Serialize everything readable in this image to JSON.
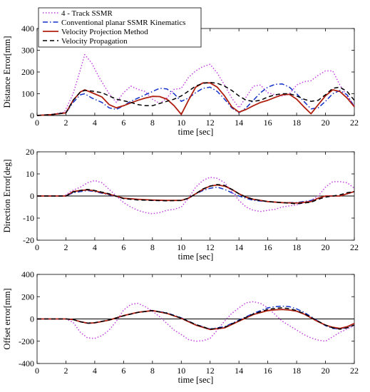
{
  "chart_data": [
    {
      "type": "line",
      "xlabel": "time [sec]",
      "ylabel": "Distance Error[mm]",
      "xlim": [
        0,
        22
      ],
      "ylim": [
        0,
        400
      ],
      "xticks": [
        0,
        2,
        4,
        6,
        8,
        10,
        12,
        14,
        16,
        18,
        20,
        22
      ],
      "yticks": [
        0,
        100,
        200,
        300,
        400
      ],
      "zero_line": true,
      "legend": {
        "placement": "top-left",
        "entries": [
          "4 - Track SSMR",
          "Conventional planar SSMR Kinematics",
          "Velocity Projection Method",
          "Velocity Propagation"
        ]
      },
      "series": [
        {
          "name": "4 - Track SSMR",
          "x": [
            0,
            1,
            1.9,
            2.5,
            3.0,
            3.3,
            3.8,
            4.3,
            5.0,
            5.5,
            6.0,
            6.5,
            7.0,
            7.5,
            8.0,
            8.5,
            9.0,
            9.5,
            10.0,
            10.5,
            11.0,
            11.5,
            12.0,
            12.5,
            13.0,
            13.5,
            14.0,
            14.5,
            15.0,
            15.5,
            16.0,
            16.5,
            17.0,
            17.5,
            18.0,
            18.5,
            19.0,
            19.5,
            20.0,
            20.5,
            21.0,
            21.5,
            22.0
          ],
          "y": [
            0,
            5,
            15,
            100,
            210,
            280,
            240,
            175,
            100,
            60,
            105,
            135,
            120,
            110,
            75,
            55,
            80,
            120,
            125,
            175,
            205,
            225,
            235,
            195,
            140,
            80,
            35,
            85,
            135,
            140,
            105,
            95,
            90,
            100,
            140,
            155,
            160,
            185,
            205,
            205,
            140,
            90,
            45
          ]
        },
        {
          "name": "Conventional planar SSMR Kinematics",
          "x": [
            0,
            1,
            2.0,
            2.5,
            3.0,
            3.3,
            3.8,
            4.5,
            5.0,
            5.5,
            6.0,
            6.5,
            7.0,
            7.5,
            8.0,
            8.5,
            9.0,
            9.5,
            10.0,
            10.5,
            11.0,
            11.5,
            12.0,
            12.5,
            13.0,
            13.5,
            14.0,
            14.5,
            15.0,
            15.5,
            16.0,
            16.5,
            17.0,
            17.5,
            18.0,
            18.5,
            19.0,
            19.5,
            20.0,
            20.5,
            21.0,
            21.5,
            22.0
          ],
          "y": [
            0,
            4,
            12,
            60,
            95,
            100,
            80,
            60,
            35,
            28,
            45,
            65,
            80,
            95,
            110,
            125,
            122,
            100,
            65,
            80,
            105,
            125,
            130,
            110,
            75,
            35,
            12,
            35,
            70,
            105,
            130,
            143,
            145,
            130,
            100,
            65,
            30,
            35,
            65,
            100,
            115,
            95,
            40
          ]
        },
        {
          "name": "Velocity Projection Method",
          "x": [
            0,
            1,
            2.0,
            2.5,
            3.0,
            3.3,
            3.8,
            4.5,
            5.0,
            5.5,
            6.0,
            6.5,
            7.0,
            7.5,
            8.0,
            8.5,
            9.0,
            9.5,
            10.0,
            10.5,
            11.0,
            11.5,
            12.0,
            12.5,
            13.0,
            13.5,
            14.0,
            14.5,
            15.0,
            15.5,
            16.0,
            16.5,
            17.0,
            17.5,
            18.0,
            18.5,
            19.0,
            19.5,
            20.0,
            20.5,
            21.0,
            21.5,
            22.0
          ],
          "y": [
            0,
            4,
            12,
            70,
            108,
            118,
            105,
            85,
            50,
            35,
            45,
            58,
            70,
            80,
            88,
            87,
            75,
            45,
            5,
            70,
            130,
            150,
            150,
            130,
            90,
            40,
            15,
            28,
            45,
            60,
            70,
            83,
            95,
            97,
            75,
            40,
            8,
            50,
            90,
            118,
            110,
            80,
            40
          ]
        },
        {
          "name": "Velocity Propagation",
          "x": [
            0,
            1,
            2.0,
            2.5,
            3.0,
            3.3,
            3.8,
            4.5,
            5.0,
            5.5,
            6.0,
            6.5,
            7.0,
            7.5,
            8.0,
            8.5,
            9.0,
            9.5,
            10.0,
            10.5,
            11.0,
            11.5,
            12.0,
            12.5,
            13.0,
            13.5,
            14.0,
            14.5,
            15.0,
            15.5,
            16.0,
            16.5,
            17.0,
            17.5,
            18.0,
            18.5,
            19.0,
            19.5,
            20.0,
            20.5,
            21.0,
            21.5,
            22.0
          ],
          "y": [
            0,
            4,
            12,
            70,
            108,
            115,
            112,
            105,
            90,
            75,
            68,
            60,
            50,
            45,
            45,
            55,
            65,
            75,
            90,
            112,
            135,
            148,
            152,
            148,
            135,
            115,
            90,
            70,
            65,
            70,
            85,
            95,
            100,
            100,
            90,
            75,
            65,
            70,
            95,
            125,
            130,
            110,
            70
          ]
        }
      ]
    },
    {
      "type": "line",
      "xlabel": "time [sec]",
      "ylabel": "Direction Error[deg]",
      "xlim": [
        0,
        22
      ],
      "ylim": [
        -20,
        20
      ],
      "xticks": [
        0,
        2,
        4,
        6,
        8,
        10,
        12,
        14,
        16,
        18,
        20,
        22
      ],
      "yticks": [
        -20,
        -10,
        0,
        10,
        20
      ],
      "zero_line": true,
      "series": [
        {
          "name": "4 - Track SSMR",
          "x": [
            0,
            1,
            1.9,
            2.3,
            3.0,
            3.5,
            4.0,
            4.5,
            5.0,
            5.5,
            6.0,
            6.5,
            7.0,
            7.5,
            8.0,
            8.5,
            9.0,
            9.5,
            10.0,
            10.5,
            11.0,
            11.5,
            12.0,
            12.5,
            13.0,
            13.5,
            14.0,
            14.5,
            15.0,
            15.5,
            16.0,
            16.5,
            17.0,
            17.5,
            18.0,
            18.5,
            19.0,
            19.5,
            20.0,
            20.5,
            21.0,
            21.5,
            22.0
          ],
          "y": [
            0,
            0,
            0,
            2,
            4,
            6,
            7,
            6,
            3,
            0,
            -3,
            -5,
            -6.5,
            -7.5,
            -8,
            -7.5,
            -6.5,
            -6,
            -5,
            -1,
            4,
            7,
            8.5,
            8,
            6,
            2,
            -2,
            -5,
            -6.5,
            -7,
            -6.5,
            -6,
            -5,
            -4.5,
            -4,
            -3,
            -2,
            0,
            4,
            6.5,
            6.5,
            6,
            3.5
          ]
        },
        {
          "name": "Conventional planar SSMR Kinematics",
          "x": [
            0,
            1,
            2.0,
            2.5,
            3.0,
            3.5,
            4.0,
            5.0,
            6.0,
            7.0,
            8.0,
            9.0,
            10.0,
            10.5,
            11.0,
            11.5,
            12.0,
            12.5,
            13.0,
            13.5,
            14.0,
            14.5,
            15.0,
            16.0,
            17.0,
            18.0,
            19.0,
            19.5,
            20.0,
            20.5,
            21.0,
            21.5,
            22.0
          ],
          "y": [
            0,
            0,
            0,
            1.5,
            2,
            2.5,
            2,
            0.5,
            -1,
            -1.5,
            -2,
            -2,
            -2,
            -1,
            1,
            2.5,
            3.5,
            4,
            3,
            1.5,
            0,
            -1,
            -2,
            -2.5,
            -3,
            -3,
            -2,
            -1,
            0,
            0,
            0,
            1,
            2
          ]
        },
        {
          "name": "Velocity Projection Method",
          "x": [
            0,
            1,
            2.0,
            2.5,
            3.0,
            3.5,
            4.0,
            5.0,
            6.0,
            7.0,
            8.0,
            9.0,
            10.0,
            10.5,
            11.0,
            11.5,
            12.0,
            12.5,
            13.0,
            13.5,
            14.0,
            14.5,
            15.0,
            16.0,
            17.0,
            18.0,
            19.0,
            19.5,
            20.0,
            20.5,
            21.0,
            21.5,
            22.0
          ],
          "y": [
            0,
            0,
            0,
            2,
            2.5,
            2.8,
            2.3,
            0.8,
            -1,
            -1.5,
            -1.8,
            -2,
            -2,
            -1,
            1,
            3,
            4.5,
            5,
            4.5,
            3,
            1,
            -0.5,
            -1.5,
            -2.5,
            -3,
            -3.2,
            -2.5,
            -1,
            0,
            0,
            0,
            1,
            2
          ]
        },
        {
          "name": "Velocity Propagation",
          "x": [
            0,
            1,
            2.0,
            2.5,
            3.0,
            3.5,
            4.0,
            5.0,
            6.0,
            7.0,
            8.0,
            9.0,
            10.0,
            10.5,
            11.0,
            11.5,
            12.0,
            12.5,
            13.0,
            13.5,
            14.0,
            14.5,
            15.0,
            16.0,
            17.0,
            18.0,
            19.0,
            19.5,
            20.0,
            20.5,
            21.0,
            21.5,
            22.0
          ],
          "y": [
            0,
            0,
            0,
            1.8,
            2.5,
            3,
            2.5,
            1,
            -1.2,
            -1.8,
            -2,
            -2.2,
            -2,
            -1,
            1,
            3.2,
            4.5,
            5.2,
            4.8,
            3,
            1,
            -0.5,
            -1.5,
            -2.5,
            -3,
            -3.5,
            -2.8,
            -1.5,
            -0.5,
            0,
            0.5,
            1.5,
            2
          ]
        }
      ]
    },
    {
      "type": "line",
      "xlabel": "time [sec]",
      "ylabel": "Offset error[mm]",
      "xlim": [
        0,
        22
      ],
      "ylim": [
        -400,
        400
      ],
      "xticks": [
        0,
        2,
        4,
        6,
        8,
        10,
        12,
        14,
        16,
        18,
        20,
        22
      ],
      "yticks": [
        -400,
        -200,
        0,
        200,
        400
      ],
      "zero_line": true,
      "series": [
        {
          "name": "4 - Track SSMR",
          "x": [
            0,
            1,
            2.0,
            2.5,
            3.0,
            3.5,
            4.0,
            4.5,
            5.0,
            5.5,
            6.0,
            6.5,
            7.0,
            7.5,
            8.0,
            8.5,
            9.0,
            9.5,
            10.0,
            10.5,
            11.0,
            11.5,
            12.0,
            12.5,
            13.0,
            13.5,
            14.0,
            14.5,
            15.0,
            15.5,
            16.0,
            16.5,
            17.0,
            17.5,
            18.0,
            18.5,
            19.0,
            19.5,
            20.0,
            20.5,
            21.0,
            21.5,
            22.0
          ],
          "y": [
            0,
            0,
            0,
            -30,
            -120,
            -170,
            -175,
            -150,
            -100,
            -20,
            80,
            130,
            140,
            110,
            70,
            20,
            -40,
            -100,
            -140,
            -185,
            -200,
            -195,
            -175,
            -100,
            -20,
            50,
            100,
            145,
            155,
            140,
            100,
            40,
            -20,
            -60,
            -100,
            -140,
            -170,
            -190,
            -200,
            -160,
            -120,
            -90,
            -60
          ]
        },
        {
          "name": "Conventional planar SSMR Kinematics",
          "x": [
            0,
            1,
            2.0,
            2.5,
            3.0,
            3.5,
            4.0,
            5.0,
            6.0,
            7.0,
            8.0,
            9.0,
            10.0,
            11.0,
            12.0,
            13.0,
            14.0,
            15.0,
            16.0,
            16.5,
            17.0,
            17.5,
            18.0,
            18.5,
            19.0,
            19.5,
            20.0,
            20.5,
            21.0,
            21.5,
            22.0
          ],
          "y": [
            0,
            0,
            0,
            -5,
            -25,
            -40,
            -35,
            -10,
            30,
            60,
            75,
            55,
            10,
            -50,
            -90,
            -70,
            -10,
            50,
            100,
            110,
            115,
            110,
            90,
            60,
            20,
            -20,
            -60,
            -85,
            -90,
            -75,
            -55
          ]
        },
        {
          "name": "Velocity Projection Method",
          "x": [
            0,
            1,
            2.0,
            2.5,
            3.0,
            3.5,
            4.0,
            5.0,
            6.0,
            7.0,
            8.0,
            9.0,
            10.0,
            11.0,
            12.0,
            13.0,
            14.0,
            15.0,
            16.0,
            16.5,
            17.0,
            17.5,
            18.0,
            18.5,
            19.0,
            19.5,
            20.0,
            20.5,
            21.0,
            21.5,
            22.0
          ],
          "y": [
            0,
            0,
            0,
            -5,
            -25,
            -38,
            -35,
            -10,
            30,
            60,
            75,
            50,
            5,
            -55,
            -95,
            -80,
            -20,
            40,
            75,
            82,
            85,
            80,
            70,
            45,
            10,
            -25,
            -55,
            -75,
            -85,
            -70,
            -40
          ]
        },
        {
          "name": "Velocity Propagation",
          "x": [
            0,
            1,
            2.0,
            2.5,
            3.0,
            3.5,
            4.0,
            5.0,
            6.0,
            7.0,
            8.0,
            9.0,
            10.0,
            11.0,
            12.0,
            13.0,
            14.0,
            15.0,
            16.0,
            16.5,
            17.0,
            17.5,
            18.0,
            18.5,
            19.0,
            19.5,
            20.0,
            20.5,
            21.0,
            21.5,
            22.0
          ],
          "y": [
            0,
            0,
            0,
            -5,
            -25,
            -38,
            -33,
            -8,
            28,
            58,
            75,
            52,
            8,
            -50,
            -92,
            -75,
            -15,
            45,
            85,
            95,
            100,
            92,
            75,
            50,
            15,
            -20,
            -55,
            -80,
            -92,
            -80,
            -55
          ]
        }
      ]
    }
  ],
  "style": {
    "series_colors": [
      "#c040e0",
      "#1030c8",
      "#b02010",
      "#000000"
    ],
    "series_dash": [
      "1.5,2.5",
      "7,3,1.5,3",
      "",
      "6,4"
    ]
  }
}
